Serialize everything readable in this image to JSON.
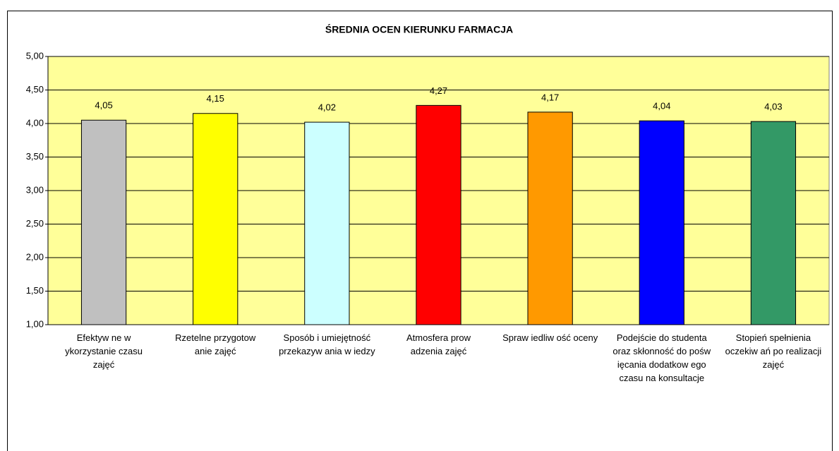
{
  "chart_data": {
    "type": "bar",
    "title": "ŚREDNIA OCEN KIERUNKU FARMACJA",
    "categories": [
      "Efektyw ne w ykorzystanie czasu zajęć",
      "Rzetelne przygotow anie zajęć",
      "Sposób i umiejętność przekazyw ania w iedzy",
      "Atmosfera prow adzenia zajęć",
      "Spraw iedliw ość oceny",
      "Podejście do studenta oraz skłonność do pośw ięcania dodatkow ego czasu na konsultacje",
      "Stopień spełnienia oczekiw ań po realizacji zajęć"
    ],
    "values": [
      4.05,
      4.15,
      4.02,
      4.27,
      4.17,
      4.04,
      4.03
    ],
    "value_labels": [
      "4,05",
      "4,15",
      "4,02",
      "4,27",
      "4,17",
      "4,04",
      "4,03"
    ],
    "colors": [
      "#c0c0c0",
      "#ffff00",
      "#ccffff",
      "#ff0000",
      "#ff9900",
      "#0000ff",
      "#339966"
    ],
    "ylim": [
      1,
      5
    ],
    "yticks": [
      {
        "value": 1,
        "label": "1,00"
      },
      {
        "value": 1.5,
        "label": "1,50"
      },
      {
        "value": 2,
        "label": "2,00"
      },
      {
        "value": 2.5,
        "label": "2,50"
      },
      {
        "value": 3,
        "label": "3,00"
      },
      {
        "value": 3.5,
        "label": "3,50"
      },
      {
        "value": 4,
        "label": "4,00"
      },
      {
        "value": 4.5,
        "label": "4,50"
      },
      {
        "value": 5,
        "label": "5,00"
      }
    ],
    "grid": true,
    "plot_background": "#ffff99"
  }
}
